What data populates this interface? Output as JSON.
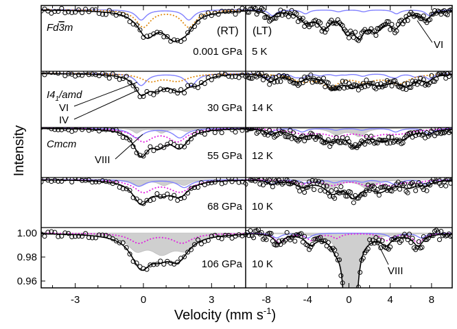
{
  "chart_data": {
    "type": "scatter",
    "ylabel": "Intensity",
    "xlabel": "Velocity (mm s",
    "xlabel_sup": "-1",
    "xlabel_close": ")",
    "left_header": "(RT)",
    "right_header": "(LT)",
    "y_tick_labels": [
      "1.00",
      "0.98",
      "0.96"
    ],
    "left_axis": {
      "xlim": [
        -4.5,
        4.5
      ],
      "ticks": [
        -3,
        0,
        3
      ],
      "tick_labels": [
        "-3",
        "0",
        "3"
      ]
    },
    "right_axis": {
      "xlim": [
        -10,
        10
      ],
      "ticks": [
        -8,
        -4,
        0,
        4,
        8
      ],
      "tick_labels": [
        "-8",
        "-4",
        "0",
        "4",
        "8"
      ]
    },
    "rows": [
      {
        "pressure": "0.001 GPa",
        "phase": "Fd3m",
        "phase_base": "Fd",
        "phase_bar": "3",
        "phase_tail": "m",
        "temperature": "5 K",
        "annotations": [
          "VI"
        ]
      },
      {
        "pressure": "30 GPa",
        "phase": "I41/amd",
        "phase_base": "I4",
        "phase_sub": "1",
        "phase_tail": "/amd",
        "temperature": "14 K",
        "annotations": [
          "VI",
          "IV"
        ]
      },
      {
        "pressure": "55 GPa",
        "phase": "Cmcm",
        "temperature": "12 K",
        "annotations": [
          "VIII"
        ]
      },
      {
        "pressure": "68 GPa",
        "phase": "",
        "temperature": "10 K",
        "annotations": []
      },
      {
        "pressure": "106 GPa",
        "phase": "",
        "temperature": "10 K",
        "annotations": [
          "VIII"
        ]
      }
    ],
    "series_colors": {
      "data": "#000000",
      "fit": "#000000",
      "blue": "#8080ff",
      "orange": "#e08a10",
      "magenta": "#e020e0",
      "gray": "#cfcfcf"
    }
  }
}
